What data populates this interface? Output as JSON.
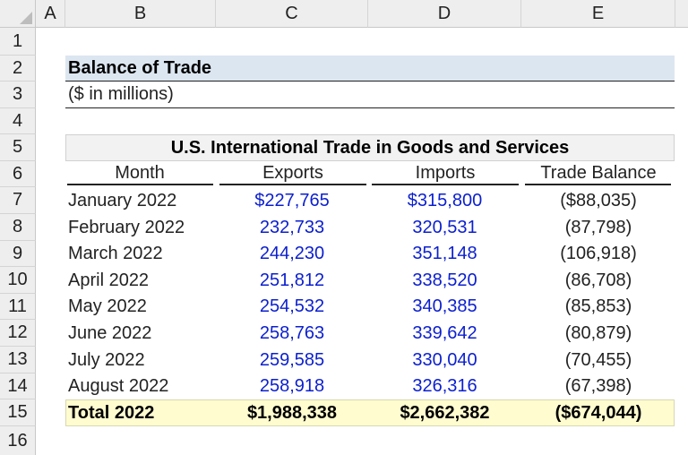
{
  "columns": [
    "A",
    "B",
    "C",
    "D",
    "E"
  ],
  "rows": [
    "1",
    "2",
    "3",
    "4",
    "5",
    "6",
    "7",
    "8",
    "9",
    "10",
    "11",
    "12",
    "13",
    "14",
    "15",
    "16"
  ],
  "title": "Balance of Trade",
  "units": "($ in millions)",
  "table_title": "U.S. International Trade in Goods and Services",
  "headers": {
    "month": "Month",
    "exports": "Exports",
    "imports": "Imports",
    "balance": "Trade Balance"
  },
  "data_rows": [
    {
      "month": "January 2022",
      "exports": "$227,765",
      "imports": "$315,800",
      "balance": "($88,035)"
    },
    {
      "month": "February 2022",
      "exports": "232,733",
      "imports": "320,531",
      "balance": "(87,798)"
    },
    {
      "month": "March 2022",
      "exports": "244,230",
      "imports": "351,148",
      "balance": "(106,918)"
    },
    {
      "month": "April 2022",
      "exports": "251,812",
      "imports": "338,520",
      "balance": "(86,708)"
    },
    {
      "month": "May 2022",
      "exports": "254,532",
      "imports": "340,385",
      "balance": "(85,853)"
    },
    {
      "month": "June 2022",
      "exports": "258,763",
      "imports": "339,642",
      "balance": "(80,879)"
    },
    {
      "month": "July 2022",
      "exports": "259,585",
      "imports": "330,040",
      "balance": "(70,455)"
    },
    {
      "month": "August 2022",
      "exports": "258,918",
      "imports": "326,316",
      "balance": "(67,398)"
    }
  ],
  "total": {
    "label": "Total 2022",
    "exports": "$1,988,338",
    "imports": "$2,662,382",
    "balance": "($674,044)"
  },
  "colors": {
    "header_bg": "#eeeeee",
    "title_bg": "#dce6f1",
    "table_title_bg": "#f2f2f2",
    "total_bg": "#fffcd0",
    "input_blue": "#0b1fcf"
  }
}
